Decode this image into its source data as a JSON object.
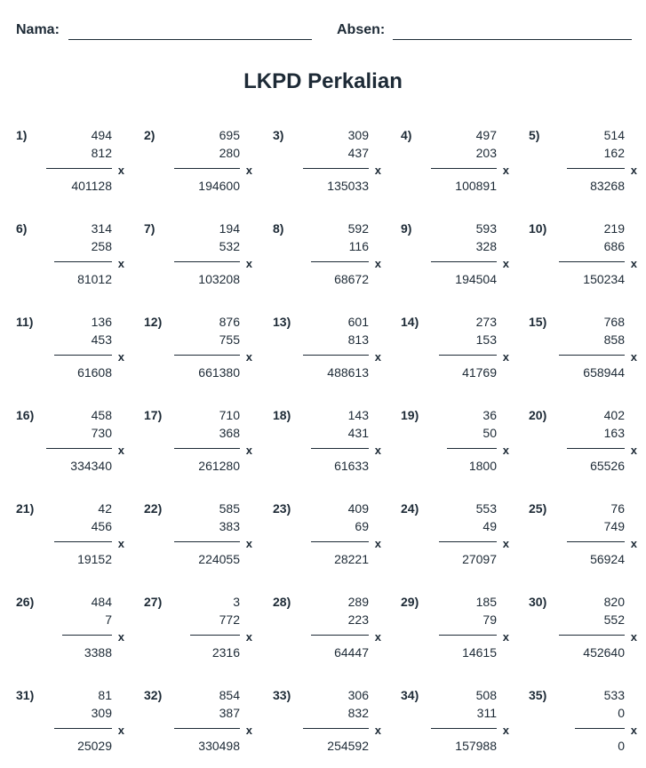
{
  "header": {
    "name_label": "Nama:",
    "absen_label": "Absen:"
  },
  "title": "LKPD Perkalian",
  "operator": "x",
  "problems": [
    {
      "n": "1)",
      "a": "494",
      "b": "812",
      "ans": "401128"
    },
    {
      "n": "2)",
      "a": "695",
      "b": "280",
      "ans": "194600"
    },
    {
      "n": "3)",
      "a": "309",
      "b": "437",
      "ans": "135033"
    },
    {
      "n": "4)",
      "a": "497",
      "b": "203",
      "ans": "100891"
    },
    {
      "n": "5)",
      "a": "514",
      "b": "162",
      "ans": "83268"
    },
    {
      "n": "6)",
      "a": "314",
      "b": "258",
      "ans": "81012"
    },
    {
      "n": "7)",
      "a": "194",
      "b": "532",
      "ans": "103208"
    },
    {
      "n": "8)",
      "a": "592",
      "b": "116",
      "ans": "68672"
    },
    {
      "n": "9)",
      "a": "593",
      "b": "328",
      "ans": "194504"
    },
    {
      "n": "10)",
      "a": "219",
      "b": "686",
      "ans": "150234"
    },
    {
      "n": "11)",
      "a": "136",
      "b": "453",
      "ans": "61608"
    },
    {
      "n": "12)",
      "a": "876",
      "b": "755",
      "ans": "661380"
    },
    {
      "n": "13)",
      "a": "601",
      "b": "813",
      "ans": "488613"
    },
    {
      "n": "14)",
      "a": "273",
      "b": "153",
      "ans": "41769"
    },
    {
      "n": "15)",
      "a": "768",
      "b": "858",
      "ans": "658944"
    },
    {
      "n": "16)",
      "a": "458",
      "b": "730",
      "ans": "334340"
    },
    {
      "n": "17)",
      "a": "710",
      "b": "368",
      "ans": "261280"
    },
    {
      "n": "18)",
      "a": "143",
      "b": "431",
      "ans": "61633"
    },
    {
      "n": "19)",
      "a": "36",
      "b": "50",
      "ans": "1800"
    },
    {
      "n": "20)",
      "a": "402",
      "b": "163",
      "ans": "65526"
    },
    {
      "n": "21)",
      "a": "42",
      "b": "456",
      "ans": "19152"
    },
    {
      "n": "22)",
      "a": "585",
      "b": "383",
      "ans": "224055"
    },
    {
      "n": "23)",
      "a": "409",
      "b": "69",
      "ans": "28221"
    },
    {
      "n": "24)",
      "a": "553",
      "b": "49",
      "ans": "27097"
    },
    {
      "n": "25)",
      "a": "76",
      "b": "749",
      "ans": "56924"
    },
    {
      "n": "26)",
      "a": "484",
      "b": "7",
      "ans": "3388"
    },
    {
      "n": "27)",
      "a": "3",
      "b": "772",
      "ans": "2316"
    },
    {
      "n": "28)",
      "a": "289",
      "b": "223",
      "ans": "64447"
    },
    {
      "n": "29)",
      "a": "185",
      "b": "79",
      "ans": "14615"
    },
    {
      "n": "30)",
      "a": "820",
      "b": "552",
      "ans": "452640"
    },
    {
      "n": "31)",
      "a": "81",
      "b": "309",
      "ans": "25029"
    },
    {
      "n": "32)",
      "a": "854",
      "b": "387",
      "ans": "330498"
    },
    {
      "n": "33)",
      "a": "306",
      "b": "832",
      "ans": "254592"
    },
    {
      "n": "34)",
      "a": "508",
      "b": "311",
      "ans": "157988"
    },
    {
      "n": "35)",
      "a": "533",
      "b": "0",
      "ans": "0"
    }
  ]
}
